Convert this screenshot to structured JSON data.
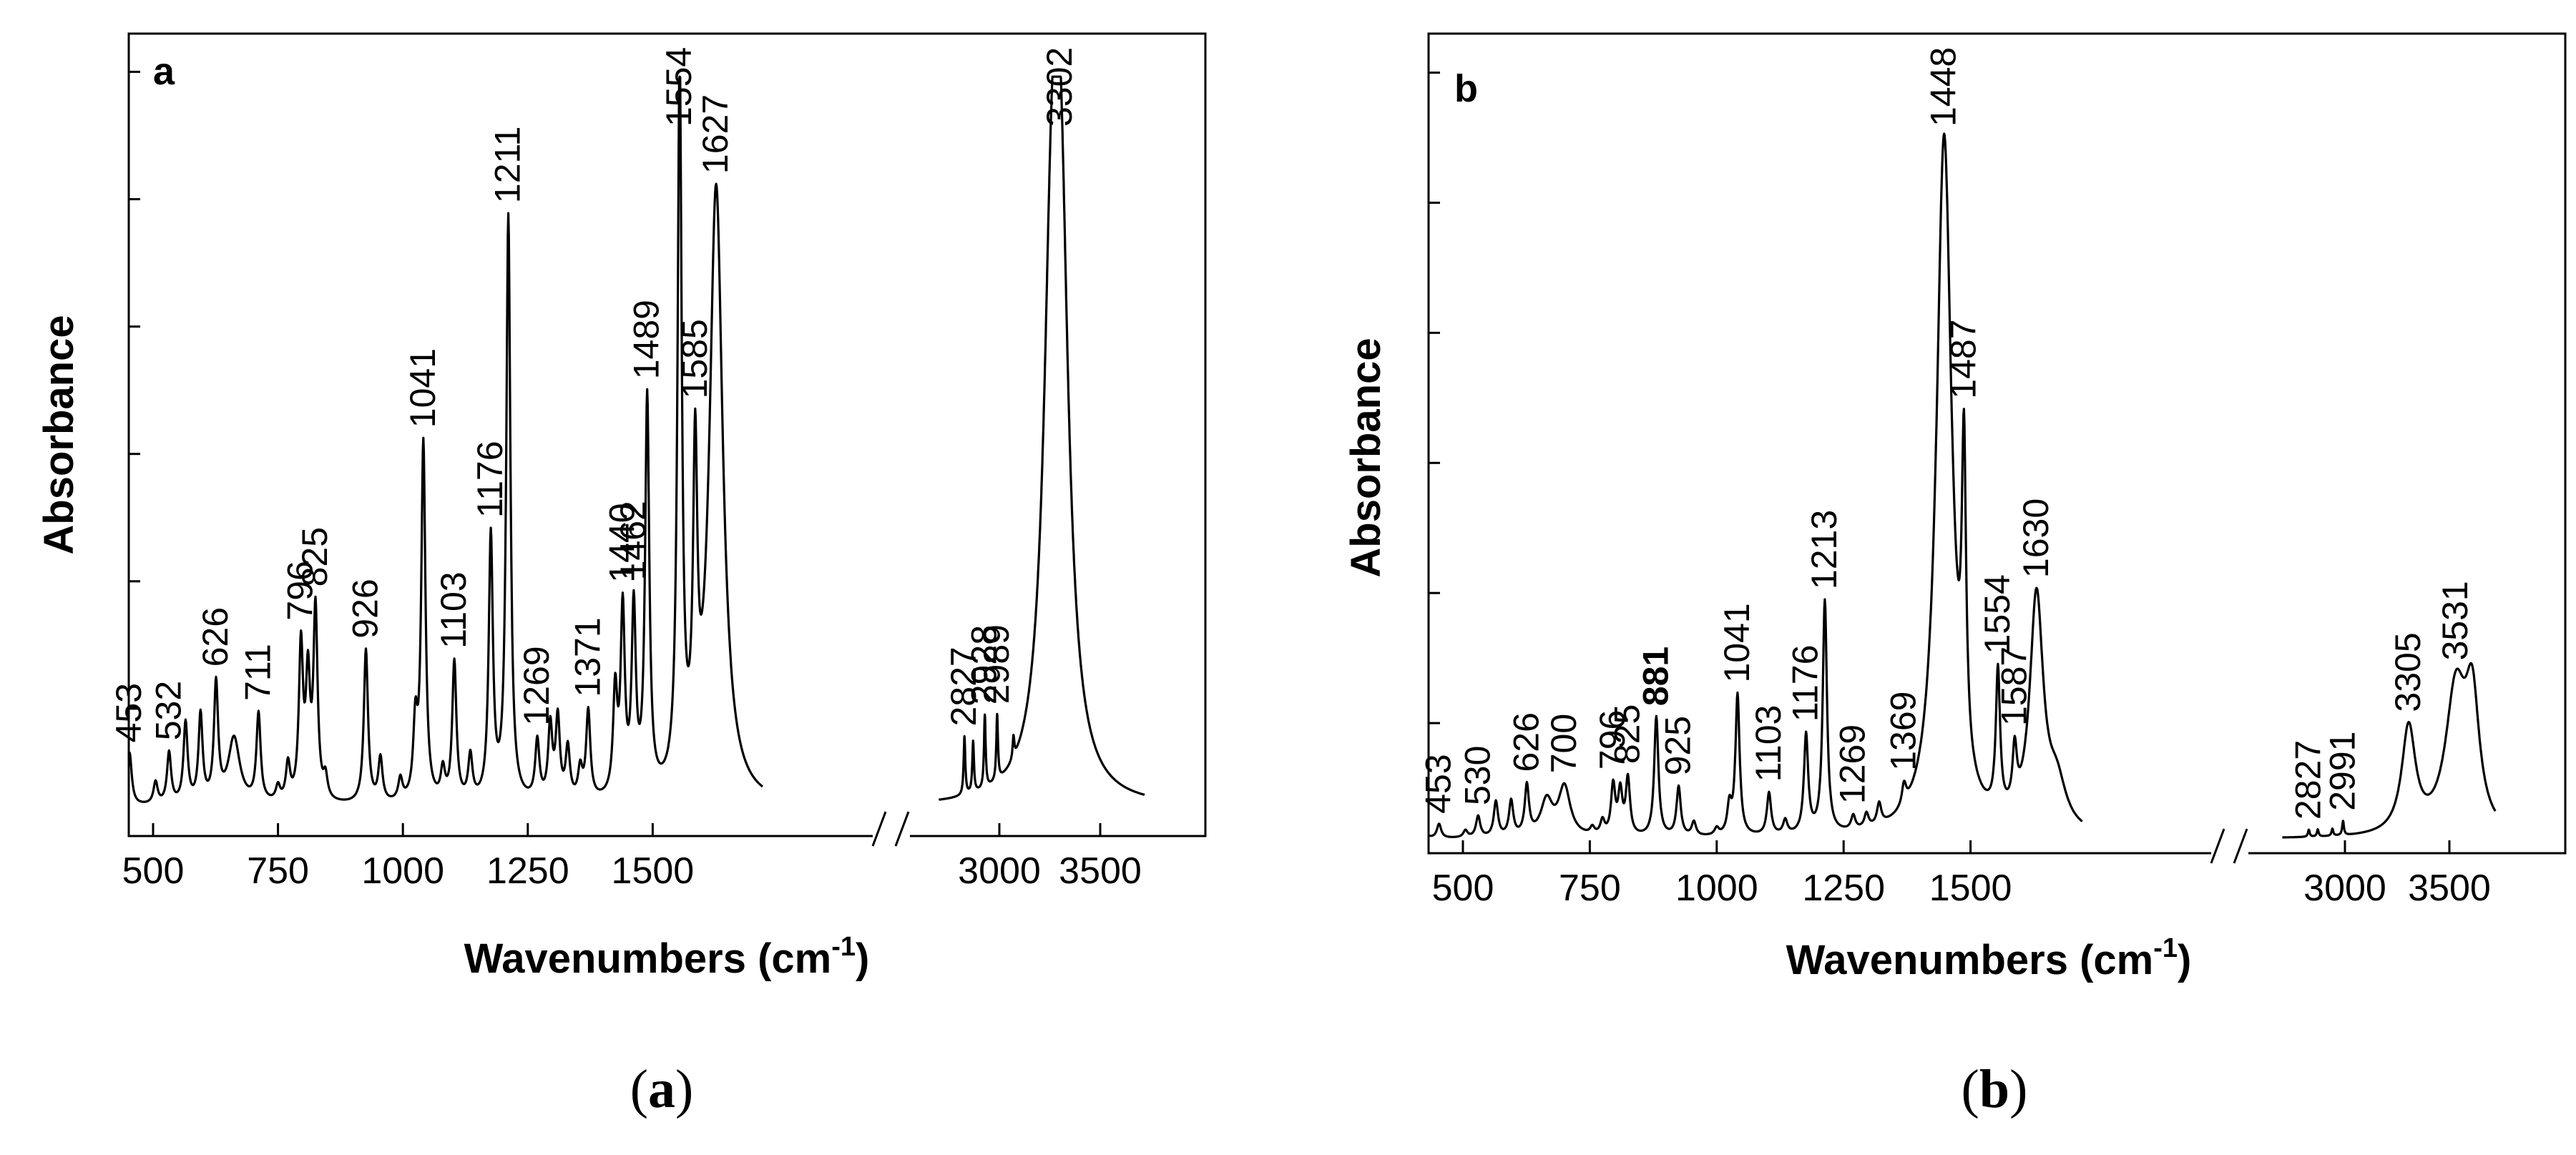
{
  "chart_data": [
    {
      "type": "line",
      "panel_letter": "a",
      "caption_letter": "a",
      "xlabel": "Wavenumbers (cm",
      "xlabel_sup": "-1",
      "xlabel_close": ")",
      "ylabel": "Absorbance",
      "xticks": [
        "500",
        "750",
        "1000",
        "1250",
        "1500",
        "3000",
        "3500"
      ],
      "axis_break": "between 1700 and 2700",
      "ylim": [
        0,
        100
      ],
      "baseline": 4,
      "peaks": [
        {
          "x": 430,
          "y": 8
        },
        {
          "x": 453,
          "y": 11,
          "label": "453"
        },
        {
          "x": 505,
          "y": 7
        },
        {
          "x": 532,
          "y": 11,
          "label": "532"
        },
        {
          "x": 565,
          "y": 15
        },
        {
          "x": 595,
          "y": 16
        },
        {
          "x": 626,
          "y": 20,
          "label": "626"
        },
        {
          "x": 662,
          "y": 13,
          "w": 14
        },
        {
          "x": 711,
          "y": 16,
          "label": "711"
        },
        {
          "x": 750,
          "y": 6
        },
        {
          "x": 770,
          "y": 9
        },
        {
          "x": 796,
          "y": 25,
          "label": "796"
        },
        {
          "x": 810,
          "y": 20
        },
        {
          "x": 825,
          "y": 30,
          "label": "825"
        },
        {
          "x": 845,
          "y": 7
        },
        {
          "x": 926,
          "y": 25,
          "label": "926"
        },
        {
          "x": 955,
          "y": 10
        },
        {
          "x": 995,
          "y": 7
        },
        {
          "x": 1025,
          "y": 14
        },
        {
          "x": 1041,
          "y": 53,
          "label": "1041"
        },
        {
          "x": 1080,
          "y": 8
        },
        {
          "x": 1103,
          "y": 23,
          "label": "1103"
        },
        {
          "x": 1135,
          "y": 10
        },
        {
          "x": 1176,
          "y": 40,
          "label": "1176"
        },
        {
          "x": 1211,
          "y": 84,
          "label": "1211"
        },
        {
          "x": 1269,
          "y": 12,
          "label": "1269"
        },
        {
          "x": 1295,
          "y": 14
        },
        {
          "x": 1310,
          "y": 15
        },
        {
          "x": 1330,
          "y": 11
        },
        {
          "x": 1355,
          "y": 8
        },
        {
          "x": 1371,
          "y": 16,
          "label": "1371"
        },
        {
          "x": 1425,
          "y": 18
        },
        {
          "x": 1440,
          "y": 29,
          "label": "1440"
        },
        {
          "x": 1462,
          "y": 29,
          "label": "1462"
        },
        {
          "x": 1489,
          "y": 58,
          "label": "1489"
        },
        {
          "x": 1554,
          "y": 102,
          "label": "1554"
        },
        {
          "x": 1585,
          "y": 45,
          "label": "1585"
        },
        {
          "x": 1627,
          "y": 88,
          "label": "1627",
          "w": 16
        },
        {
          "x": 2827,
          "y": 12,
          "label": "2827"
        },
        {
          "x": 2870,
          "y": 11
        },
        {
          "x": 2928,
          "y": 14,
          "label": "2928"
        },
        {
          "x": 2989,
          "y": 13,
          "label": "2989"
        },
        {
          "x": 3070,
          "y": 7
        },
        {
          "x": 3260,
          "y": 62,
          "w": 50
        },
        {
          "x": 3302,
          "y": 72,
          "label": "3302",
          "w": 50
        }
      ]
    },
    {
      "type": "line",
      "panel_letter": "b",
      "caption_letter": "b",
      "xlabel": "Wavenumbers (cm",
      "xlabel_sup": "-1",
      "xlabel_close": ")",
      "ylabel": "Absorbance",
      "xticks": [
        "500",
        "750",
        "1000",
        "1250",
        "1500",
        "3000",
        "3500"
      ],
      "axis_break": "between 1700 and 2700",
      "ylim": [
        0,
        100
      ],
      "baseline": 2,
      "peaks": [
        {
          "x": 425,
          "y": 3
        },
        {
          "x": 453,
          "y": 4,
          "label": "453"
        },
        {
          "x": 505,
          "y": 3
        },
        {
          "x": 530,
          "y": 5,
          "label": "530"
        },
        {
          "x": 565,
          "y": 7
        },
        {
          "x": 595,
          "y": 7
        },
        {
          "x": 626,
          "y": 9,
          "label": "626"
        },
        {
          "x": 665,
          "y": 7,
          "w": 14
        },
        {
          "x": 700,
          "y": 9,
          "label": "700",
          "w": 14
        },
        {
          "x": 755,
          "y": 3
        },
        {
          "x": 775,
          "y": 4
        },
        {
          "x": 796,
          "y": 9,
          "label": "796"
        },
        {
          "x": 810,
          "y": 8
        },
        {
          "x": 825,
          "y": 10,
          "label": "825"
        },
        {
          "x": 881,
          "y": 19,
          "label": "881",
          "bold": true
        },
        {
          "x": 925,
          "y": 9,
          "label": "925"
        },
        {
          "x": 955,
          "y": 4
        },
        {
          "x": 1000,
          "y": 3
        },
        {
          "x": 1025,
          "y": 6
        },
        {
          "x": 1041,
          "y": 22,
          "label": "1041"
        },
        {
          "x": 1103,
          "y": 8,
          "label": "1103"
        },
        {
          "x": 1135,
          "y": 4
        },
        {
          "x": 1176,
          "y": 16,
          "label": "1176"
        },
        {
          "x": 1213,
          "y": 35,
          "label": "1213"
        },
        {
          "x": 1269,
          "y": 4,
          "label": "1269"
        },
        {
          "x": 1295,
          "y": 4
        },
        {
          "x": 1320,
          "y": 5
        },
        {
          "x": 1369,
          "y": 5,
          "label": "1369"
        },
        {
          "x": 1448,
          "y": 101,
          "label": "1448",
          "w": 18
        },
        {
          "x": 1487,
          "y": 45,
          "label": "1487"
        },
        {
          "x": 1554,
          "y": 22,
          "label": "1554"
        },
        {
          "x": 1587,
          "y": 10,
          "label": "1587"
        },
        {
          "x": 1630,
          "y": 35,
          "label": "1630",
          "w": 16
        },
        {
          "x": 1670,
          "y": 8,
          "w": 22
        },
        {
          "x": 2827,
          "y": 3,
          "label": "2827"
        },
        {
          "x": 2870,
          "y": 3
        },
        {
          "x": 2940,
          "y": 3
        },
        {
          "x": 2991,
          "y": 4,
          "label": "2991"
        },
        {
          "x": 3070,
          "y": 2
        },
        {
          "x": 3305,
          "y": 17,
          "label": "3305",
          "w": 40
        },
        {
          "x": 3531,
          "y": 22,
          "label": "3531",
          "w": 60
        },
        {
          "x": 3610,
          "y": 19,
          "w": 40
        }
      ]
    }
  ]
}
